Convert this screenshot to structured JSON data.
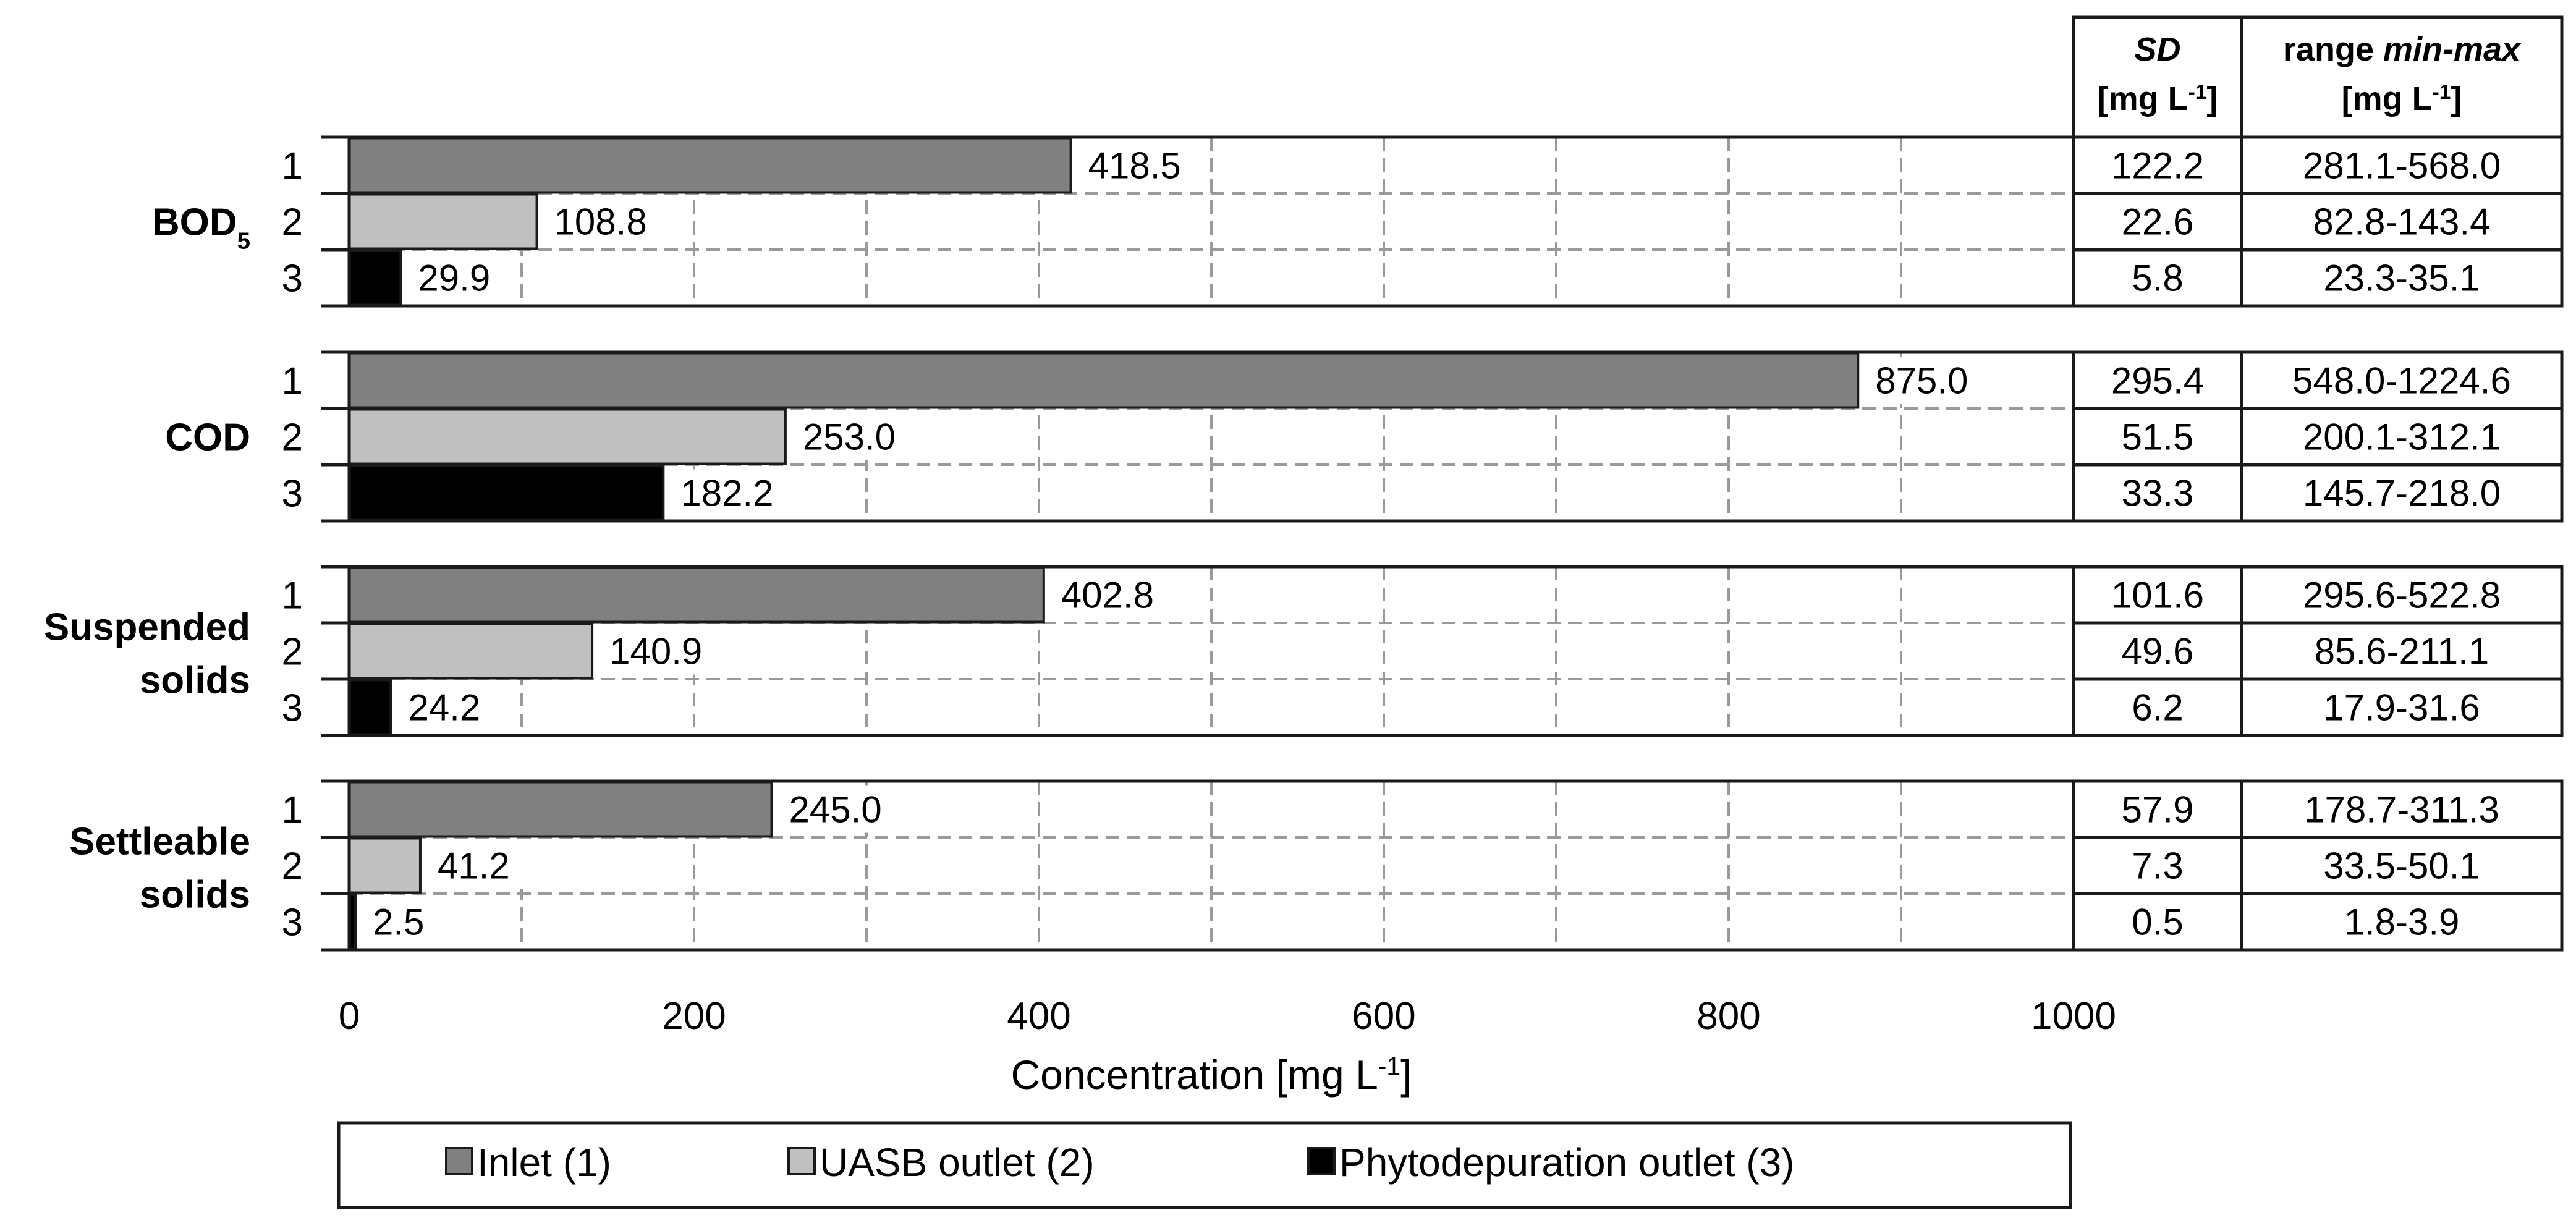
{
  "chart_data": {
    "type": "bar",
    "orientation": "horizontal",
    "xlabel": "Concentration [mg L-1]",
    "xlabel_base": "Concentration [mg L",
    "xlabel_sup": "-1",
    "xlabel_close": "]",
    "xlim": [
      0,
      1000
    ],
    "xticks": [
      0,
      200,
      400,
      600,
      800,
      1000
    ],
    "grid": "dashed vertical every 100",
    "series": [
      {
        "name": "Inlet (1)",
        "short": "1",
        "color": "#808080"
      },
      {
        "name": "UASB outlet (2)",
        "short": "2",
        "color": "#c0c0c0"
      },
      {
        "name": "Phytodepuration outlet (3)",
        "short": "3",
        "color": "#000000"
      }
    ],
    "groups": [
      {
        "label": "BOD",
        "label_sub": "5",
        "values": [
          418.5,
          108.8,
          29.9
        ],
        "labels": [
          "418.5",
          "108.8",
          "29.9"
        ],
        "sd": [
          "122.2",
          "22.6",
          "5.8"
        ],
        "range": [
          "281.1-568.0",
          "82.8-143.4",
          "23.3-35.1"
        ]
      },
      {
        "label": "COD",
        "label_sub": "",
        "values": [
          875.0,
          253.0,
          182.2
        ],
        "labels": [
          "875.0",
          "253.0",
          "182.2"
        ],
        "sd": [
          "295.4",
          "51.5",
          "33.3"
        ],
        "range": [
          "548.0-1224.6",
          "200.1-312.1",
          "145.7-218.0"
        ]
      },
      {
        "label": "Suspended solids",
        "label_lines": [
          "Suspended",
          "solids"
        ],
        "values": [
          402.8,
          140.9,
          24.2
        ],
        "labels": [
          "402.8",
          "140.9",
          "24.2"
        ],
        "sd": [
          "101.6",
          "49.6",
          "6.2"
        ],
        "range": [
          "295.6-522.8",
          "85.6-211.1",
          "17.9-31.6"
        ]
      },
      {
        "label": "Settleable solids",
        "label_lines": [
          "Settleable",
          "solids"
        ],
        "values": [
          245.0,
          41.2,
          2.5
        ],
        "labels": [
          "245.0",
          "41.2",
          "2.5"
        ],
        "sd": [
          "57.9",
          "7.3",
          "0.5"
        ],
        "range": [
          "178.7-311.3",
          "33.5-50.1",
          "1.8-3.9"
        ]
      }
    ],
    "table_headers": {
      "sd": {
        "line1": "SD",
        "line2_base": "[mg L",
        "line2_sup": "-1",
        "line2_close": "]"
      },
      "range": {
        "line1_a": "range ",
        "line1_b": "min-max",
        "line2_base": "[mg L",
        "line2_sup": "-1",
        "line2_close": "]"
      }
    },
    "legend_position": "bottom"
  }
}
